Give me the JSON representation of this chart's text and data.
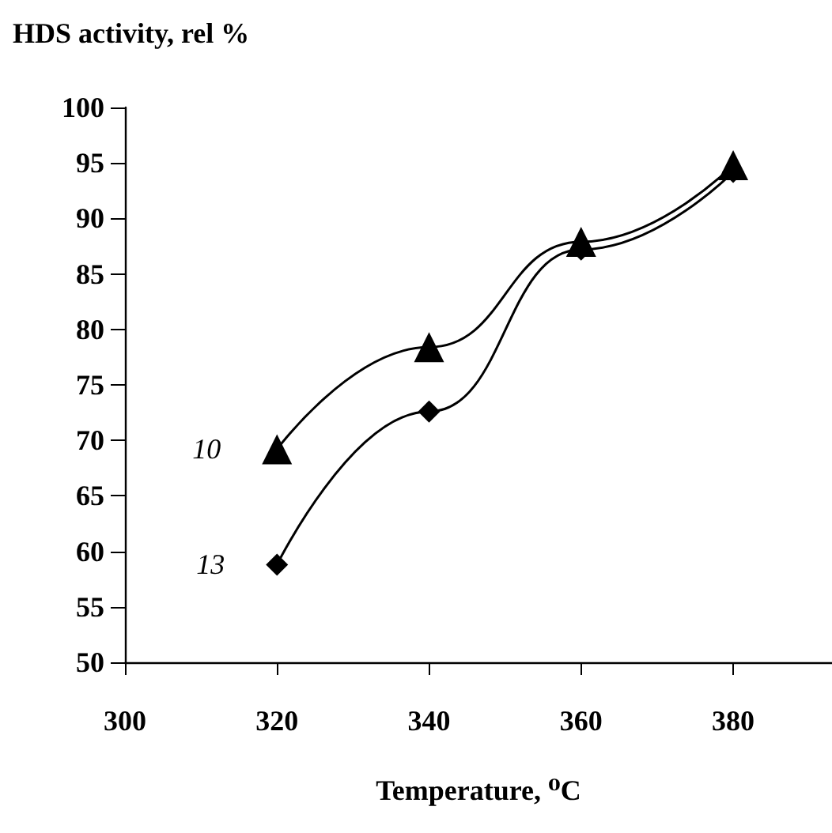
{
  "chart_data": {
    "type": "line",
    "ylabel": "HDS activity, rel %",
    "xlabel": "Temperature, ⁰C",
    "x": [
      320,
      340,
      360,
      380
    ],
    "series": [
      {
        "name": "10",
        "color": "#000000",
        "marker": "triangle",
        "values": [
          69.2,
          78.4,
          87.9,
          94.8
        ]
      },
      {
        "name": "13",
        "color": "#000000",
        "marker": "diamond",
        "values": [
          58.8,
          72.6,
          87.2,
          94.2
        ]
      }
    ],
    "xlim": [
      300,
      393
    ],
    "xticks": [
      300,
      320,
      340,
      360,
      380
    ],
    "ylim": [
      50,
      100
    ],
    "yticks": [
      50,
      55,
      60,
      65,
      70,
      75,
      80,
      85,
      90,
      95,
      100
    ],
    "grid": false,
    "legend": false,
    "line_style": "solid"
  }
}
